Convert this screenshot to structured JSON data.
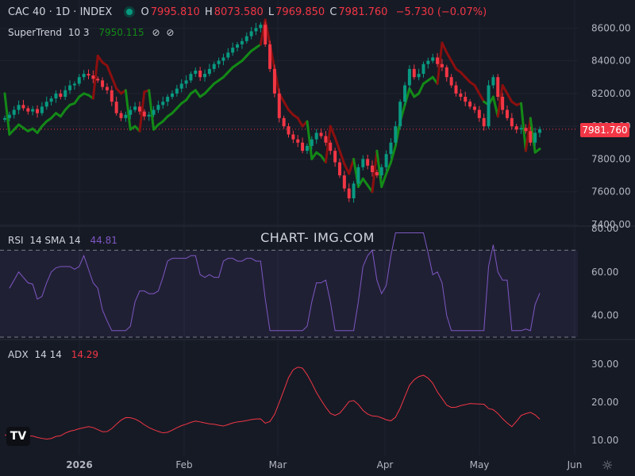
{
  "header": {
    "symbol": "CAC 40 · 1D · INDEX",
    "open_label": "O",
    "open": "7995.810",
    "high_label": "H",
    "high": "8073.580",
    "low_label": "L",
    "low": "7969.850",
    "close_label": "C",
    "close": "7981.760",
    "change": "−5.730 (−0.07%)",
    "status_color": "#089981"
  },
  "supertrend": {
    "name": "SuperTrend",
    "params": "10 3",
    "value": "7950.115",
    "icons": [
      "eye-off-icon",
      "eye-off-icon"
    ]
  },
  "rsi": {
    "name": "RSI",
    "params": "14 SMA 14",
    "value": "44.81"
  },
  "adx": {
    "name": "ADX",
    "params": "14 14",
    "value": "14.29"
  },
  "last_price": "7981.760",
  "watermark": "CHART- IMG.COM",
  "logo": "TV",
  "colors": {
    "up": "#089981",
    "down": "#f23645",
    "st_up": "#138a16",
    "st_down": "#8b0f0f",
    "rsi": "#7e57c2",
    "adx": "#f23645"
  },
  "chart_data": [
    {
      "type": "candlestick",
      "title": "CAC 40 · 1D · INDEX",
      "yticks": [
        "8600.00",
        "8400.00",
        "8200.00",
        "8000.00",
        "7800.00",
        "7600.00",
        "7400.00"
      ],
      "ylim": [
        7400,
        8650
      ],
      "xticks": [
        "2026",
        "Feb",
        "Mar",
        "Apr",
        "May",
        "Jun"
      ],
      "last_close": 7981.76,
      "approx_close_series": [
        8050,
        8070,
        8100,
        8130,
        8110,
        8090,
        8105,
        8080,
        8120,
        8150,
        8170,
        8200,
        8180,
        8220,
        8250,
        8260,
        8300,
        8320,
        8310,
        8290,
        8280,
        8240,
        8220,
        8150,
        8080,
        8050,
        8070,
        8100,
        8120,
        8090,
        8060,
        8070,
        8100,
        8130,
        8150,
        8180,
        8200,
        8230,
        8260,
        8280,
        8320,
        8340,
        8300,
        8320,
        8350,
        8380,
        8400,
        8420,
        8450,
        8480,
        8500,
        8520,
        8550,
        8580,
        8600,
        8620,
        8500,
        8350,
        8200,
        8050,
        8000,
        7950,
        7920,
        7900,
        7850,
        7880,
        7920,
        7960,
        7940,
        7900,
        7850,
        7780,
        7700,
        7620,
        7560,
        7650,
        7750,
        7800,
        7760,
        7720,
        7700,
        7750,
        7830,
        7900,
        8000,
        8150,
        8250,
        8350,
        8300,
        8320,
        8380,
        8400,
        8420,
        8380,
        8360,
        8300,
        8250,
        8200,
        8180,
        8150,
        8120,
        8100,
        8050,
        8000,
        8250,
        8300,
        8180,
        8100,
        8050,
        8000,
        7980,
        7990,
        7970,
        7900,
        7960,
        7982
      ]
    },
    {
      "type": "line",
      "title": "RSI 14 SMA 14",
      "yticks": [
        "80.00",
        "60.00",
        "40.00"
      ],
      "ylim": [
        30,
        80
      ],
      "bands": [
        30,
        70
      ],
      "last_value": 44.81
    },
    {
      "type": "line",
      "title": "ADX 14 14",
      "yticks": [
        "30.00",
        "20.00",
        "10.00"
      ],
      "ylim": [
        6,
        36
      ],
      "last_value": 14.29
    }
  ]
}
